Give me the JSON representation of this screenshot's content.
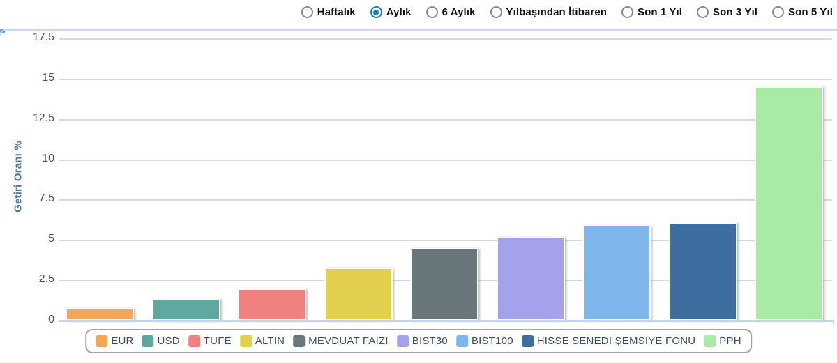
{
  "period_selector": {
    "selected_color": "#1878c8",
    "options": [
      {
        "label": "Haftalık",
        "selected": false
      },
      {
        "label": "Aylık",
        "selected": true
      },
      {
        "label": "6 Aylık",
        "selected": false
      },
      {
        "label": "Yılbaşından İtibaren",
        "selected": false
      },
      {
        "label": "Son 1 Yıl",
        "selected": false
      },
      {
        "label": "Son 3 Yıl",
        "selected": false
      },
      {
        "label": "Son 5 Yıl",
        "selected": false
      }
    ]
  },
  "chart_data": {
    "type": "bar",
    "title": "",
    "xlabel": "",
    "ylabel": "Getiri Oranı %",
    "ylim": [
      0,
      17.5
    ],
    "yticks": [
      0,
      2.5,
      5,
      7.5,
      10,
      12.5,
      15,
      17.5
    ],
    "grid": true,
    "legend_position": "bottom",
    "categories": [
      "EUR",
      "USD",
      "TUFE",
      "ALTIN",
      "MEVDUAT FAIZI",
      "BIST30",
      "BIST100",
      "HISSE SENEDI ŞEMSIYE FONU",
      "PPH"
    ],
    "values": [
      0.8,
      1.4,
      2.0,
      3.3,
      4.5,
      5.2,
      5.9,
      6.1,
      14.5
    ],
    "colors": [
      "#f2a65a",
      "#5fa8a0",
      "#f28080",
      "#e2cf4e",
      "#687779",
      "#a5a2ec",
      "#7eb6ec",
      "#3e6da0",
      "#a9eba5"
    ]
  },
  "axis_colors": {
    "tick_label": "#44546a",
    "axis_title": "#4679a8",
    "gridline": "#d9d9d9",
    "baseline": "#c5d4e8",
    "panel_border": "#c9daee"
  }
}
